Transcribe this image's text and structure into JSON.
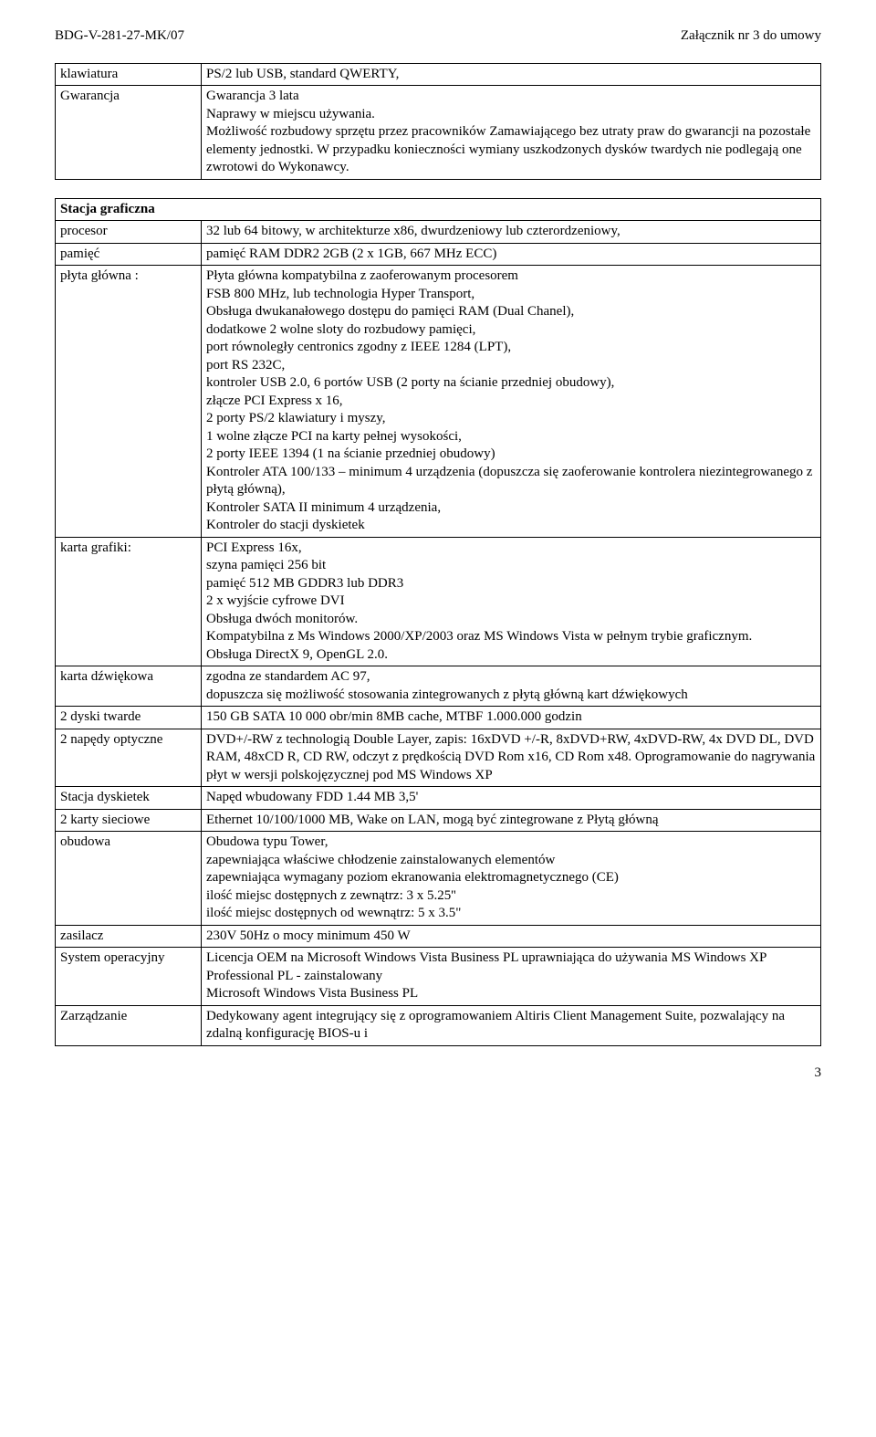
{
  "header": {
    "doc_id": "BDG-V-281-27-MK/07",
    "attachment": "Załącznik nr 3 do umowy"
  },
  "table1": {
    "rows": [
      {
        "label": "klawiatura",
        "value": "PS/2 lub USB,  standard QWERTY,"
      },
      {
        "label": "Gwarancja",
        "value": "Gwarancja 3 lata\nNaprawy w miejscu używania.\nMożliwość rozbudowy sprzętu przez pracowników Zamawiającego bez utraty praw do gwarancji na pozostałe elementy jednostki. W przypadku konieczności wymiany uszkodzonych dysków twardych nie podlegają one zwrotowi do Wykonawcy."
      }
    ]
  },
  "table2": {
    "title": "Stacja graficzna",
    "rows": [
      {
        "label": "procesor",
        "value": "32 lub 64 bitowy, w architekturze x86, dwurdzeniowy lub czterordzeniowy,"
      },
      {
        "label": "pamięć",
        "value": "pamięć RAM DDR2 2GB (2 x 1GB, 667 MHz ECC)"
      },
      {
        "label": "płyta główna :",
        "value": "Płyta główna kompatybilna z zaoferowanym procesorem\nFSB 800 MHz, lub technologia Hyper Transport,\nObsługa dwukanałowego dostępu do pamięci RAM  (Dual Chanel),\ndodatkowe 2 wolne sloty do rozbudowy pamięci,\nport równoległy centronics zgodny z IEEE 1284 (LPT),\nport RS 232C,\nkontroler USB 2.0, 6 portów USB (2 porty na ścianie przedniej obudowy),\nzłącze PCI Express x 16,\n2 porty PS/2 klawiatury i myszy,\n1 wolne złącze PCI na karty pełnej wysokości,\n2 porty IEEE 1394 (1 na ścianie przedniej obudowy)\nKontroler  ATA 100/133 – minimum 4 urządzenia (dopuszcza się zaoferowanie kontrolera niezintegrowanego z płytą główną),\nKontroler SATA II minimum 4 urządzenia,\nKontroler do stacji dyskietek"
      },
      {
        "label": "karta grafiki:",
        "value": "PCI Express 16x,\nszyna pamięci 256 bit\npamięć 512 MB GDDR3 lub DDR3\n2 x wyjście cyfrowe DVI\nObsługa dwóch monitorów.\nKompatybilna z Ms Windows 2000/XP/2003 oraz MS Windows Vista w pełnym trybie graficznym.\nObsługa DirectX 9, OpenGL 2.0."
      },
      {
        "label": "karta dźwiękowa",
        "value": "zgodna ze standardem  AC 97,\ndopuszcza się możliwość stosowania zintegrowanych z płytą główną kart dźwiękowych"
      },
      {
        "label": "2 dyski twarde",
        "value": "150 GB SATA 10 000 obr/min 8MB cache, MTBF 1.000.000 godzin"
      },
      {
        "label": "2 napędy optyczne",
        "value": "DVD+/-RW z technologią Double Layer,  zapis: 16xDVD +/-R, 8xDVD+RW, 4xDVD-RW, 4x DVD DL, DVD RAM, 48xCD R,  CD RW, odczyt z prędkością DVD Rom x16, CD Rom x48. Oprogramowanie do nagrywania płyt w wersji polskojęzycznej pod MS Windows XP"
      },
      {
        "label": "Stacja dyskietek",
        "value": "Napęd wbudowany FDD 1.44 MB 3,5'"
      },
      {
        "label": " 2 karty sieciowe",
        "value": "Ethernet 10/100/1000 MB, Wake on LAN, mogą być zintegrowane z Płytą główną"
      },
      {
        "label": " obudowa",
        "value": "Obudowa typu Tower,\nzapewniająca właściwe chłodzenie zainstalowanych elementów\nzapewniająca wymagany poziom ekranowania elektromagnetycznego (CE)\nilość miejsc dostępnych z zewnątrz: 3 x 5.25''\nilość miejsc dostępnych od wewnątrz: 5 x 3.5\""
      },
      {
        "label": "zasilacz",
        "value": "230V 50Hz o mocy minimum 450 W"
      },
      {
        "label": " System operacyjny",
        "value": "Licencja OEM na Microsoft Windows Vista Business PL uprawniająca do używania MS Windows XP Professional PL - zainstalowany\nMicrosoft Windows Vista Business PL"
      },
      {
        "label": "Zarządzanie",
        "value": "Dedykowany agent integrujący się z oprogramowaniem Altiris Client Management Suite, pozwalający na zdalną konfigurację BIOS-u i"
      }
    ]
  },
  "page_number": "3"
}
